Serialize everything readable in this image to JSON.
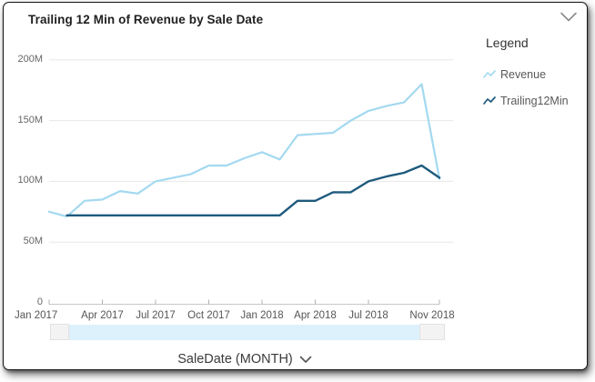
{
  "widget": {
    "title": "Trailing 12 Min of Revenue by Sale Date"
  },
  "legend": {
    "title": "Legend",
    "items": [
      {
        "label": "Revenue",
        "color": "#a3d9f0"
      },
      {
        "label": "Trailing12Min",
        "color": "#1e5a7d"
      }
    ]
  },
  "footer": {
    "axis_label": "SaleDate (MONTH)"
  },
  "colors": {
    "scrollbar_fill": "#dcf1fc",
    "scrollbar_handle": "#f3f3f3",
    "gridline": "#e7e7e7",
    "axis_line": "#c8c8c8"
  },
  "chart_data": {
    "type": "line",
    "title": "Trailing 12 Min of Revenue by Sale Date",
    "xlabel": "SaleDate (MONTH)",
    "ylabel": "",
    "unit": "M (millions)",
    "ylim": [
      0,
      200
    ],
    "grid": "horizontal",
    "legend_position": "right",
    "x": [
      "Jan 2017",
      "Feb 2017",
      "Mar 2017",
      "Apr 2017",
      "May 2017",
      "Jun 2017",
      "Jul 2017",
      "Aug 2017",
      "Sep 2017",
      "Oct 2017",
      "Nov 2017",
      "Dec 2017",
      "Jan 2018",
      "Feb 2018",
      "Mar 2018",
      "Apr 2018",
      "May 2018",
      "Jun 2018",
      "Jul 2018",
      "Aug 2018",
      "Sep 2018",
      "Oct 2018",
      "Nov 2018"
    ],
    "series": [
      {
        "name": "Revenue",
        "color": "#a3d9f0",
        "values": [
          75,
          71,
          84,
          85,
          92,
          90,
          100,
          103,
          106,
          113,
          113,
          119,
          124,
          118,
          138,
          139,
          140,
          150,
          158,
          162,
          165,
          180,
          102
        ]
      },
      {
        "name": "Trailing12Min",
        "color": "#1e5a7d",
        "values": [
          null,
          72,
          72,
          72,
          72,
          72,
          72,
          72,
          72,
          72,
          72,
          72,
          72,
          72,
          84,
          84,
          91,
          91,
          100,
          104,
          107,
          113,
          103
        ]
      }
    ],
    "ytick_labels": [
      "200M",
      "150M",
      "100M",
      "50M",
      "0"
    ],
    "xtick_labels": [
      "Jan 2017",
      "Apr 2017",
      "Jul 2017",
      "Oct 2017",
      "Jan 2018",
      "Apr 2018",
      "Jul 2018",
      "Nov 2018"
    ]
  }
}
